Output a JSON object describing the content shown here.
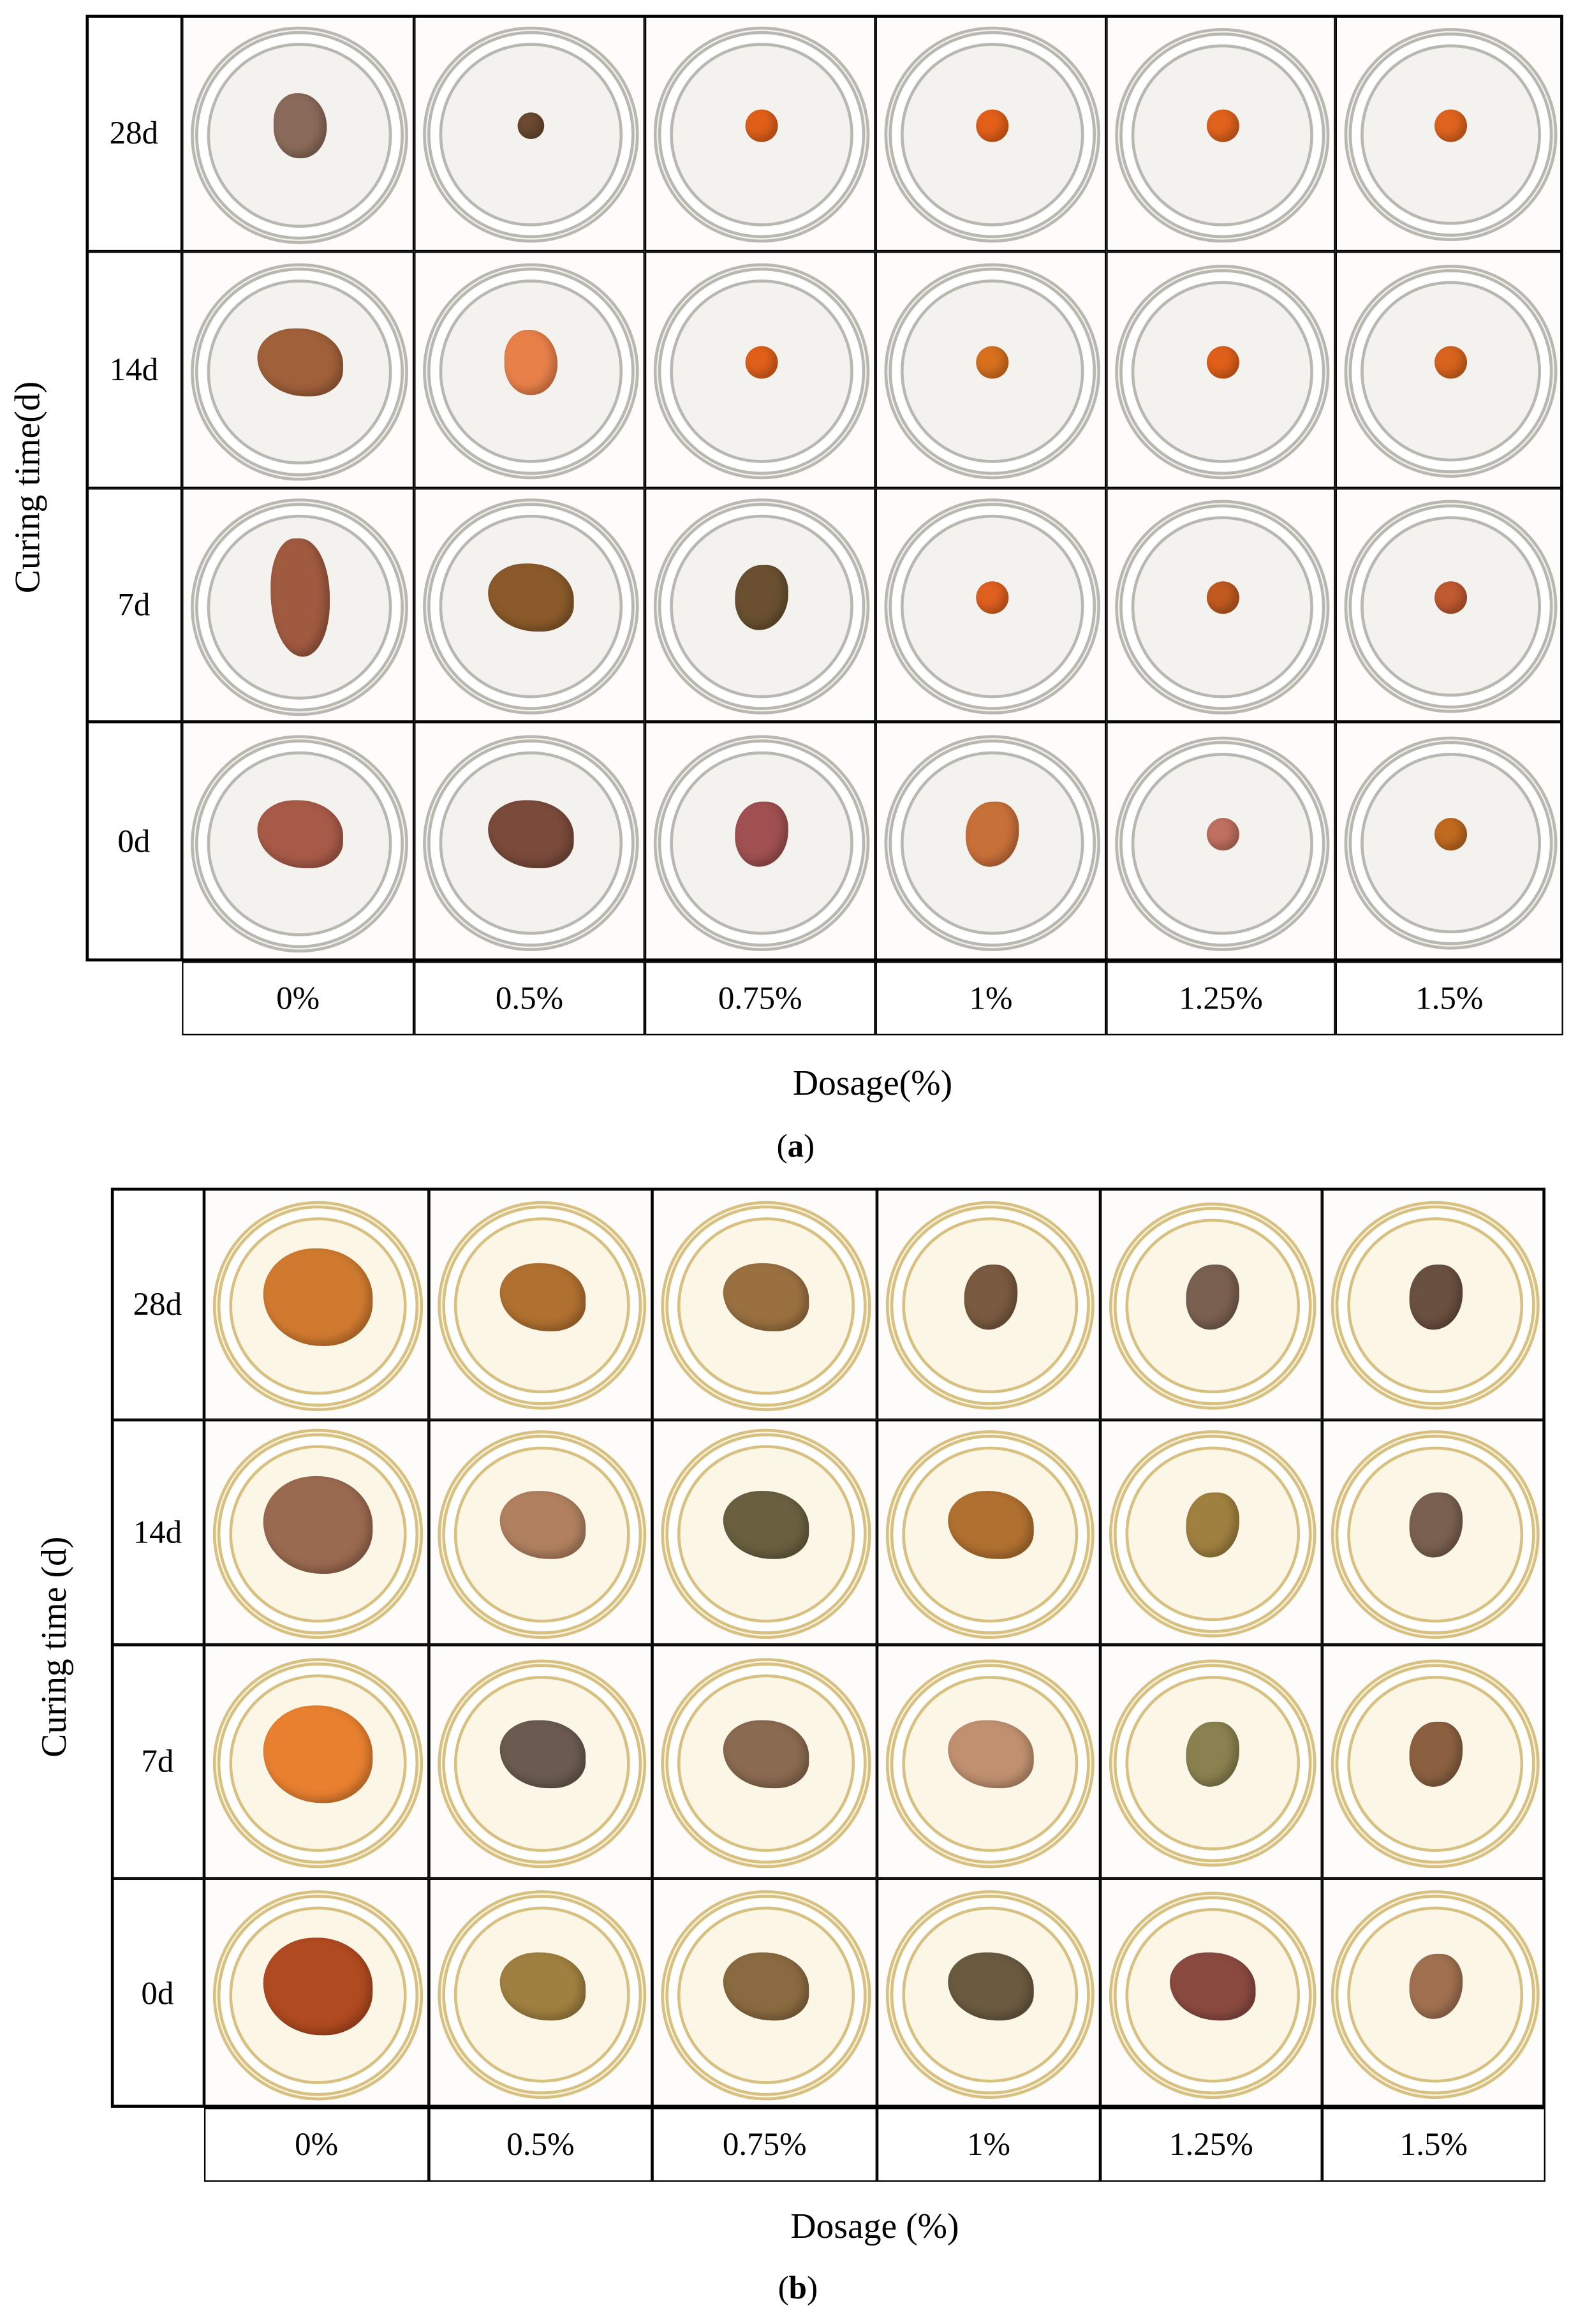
{
  "panels": [
    {
      "id": "a",
      "caption_open": "(",
      "caption_letter": "a",
      "caption_close": ")",
      "ylabel": "Curing time(d)",
      "xlabel": "Dosage(%)",
      "rows": [
        "28d",
        "14d",
        "7d",
        "0d"
      ],
      "columns": [
        "0%",
        "0.5%",
        "0.75%",
        "1%",
        "1.25%",
        "1.5%"
      ],
      "dish_rim": "#b8b8b0",
      "dish_fill": "#f4f2ee",
      "samples": [
        [
          {
            "shape": "powder",
            "color": "#8a6a5a"
          },
          {
            "shape": "ball-small",
            "color": "#6b4a30"
          },
          {
            "shape": "ball",
            "color": "#e0601a"
          },
          {
            "shape": "ball",
            "color": "#e4601a"
          },
          {
            "shape": "ball",
            "color": "#e0621c"
          },
          {
            "shape": "ball",
            "color": "#e0641e"
          }
        ],
        [
          {
            "shape": "blob",
            "color": "#a0603a"
          },
          {
            "shape": "powder",
            "color": "#e8804a"
          },
          {
            "shape": "ball",
            "color": "#e0601a"
          },
          {
            "shape": "ball",
            "color": "#d8701e"
          },
          {
            "shape": "ball",
            "color": "#e0601a"
          },
          {
            "shape": "ball",
            "color": "#d8641e"
          }
        ],
        [
          {
            "shape": "powder-tall",
            "color": "#a05a40"
          },
          {
            "shape": "blob",
            "color": "#8a5a2a"
          },
          {
            "shape": "blob-small",
            "color": "#6a5030"
          },
          {
            "shape": "ball",
            "color": "#e06020"
          },
          {
            "shape": "ball",
            "color": "#c05a20"
          },
          {
            "shape": "ball",
            "color": "#c05a30"
          }
        ],
        [
          {
            "shape": "blob",
            "color": "#a85a48"
          },
          {
            "shape": "blob",
            "color": "#7a4a3a"
          },
          {
            "shape": "blob-small",
            "color": "#a05050"
          },
          {
            "shape": "blob-small",
            "color": "#c8703a"
          },
          {
            "shape": "ball",
            "color": "#c07060"
          },
          {
            "shape": "ball",
            "color": "#c06a20"
          }
        ]
      ]
    },
    {
      "id": "b",
      "caption_open": "(",
      "caption_letter": "b",
      "caption_close": ")",
      "ylabel": "Curing time (d)",
      "xlabel": "Dosage (%)",
      "rows": [
        "28d",
        "14d",
        "7d",
        "0d"
      ],
      "columns": [
        "0%",
        "0.5%",
        "0.75%",
        "1%",
        "1.25%",
        "1.5%"
      ],
      "dish_rim": "#d8c080",
      "dish_fill": "#fbf6e6",
      "samples": [
        [
          {
            "shape": "blob-large",
            "color": "#d07a30"
          },
          {
            "shape": "blob",
            "color": "#b07030"
          },
          {
            "shape": "blob",
            "color": "#9a7040"
          },
          {
            "shape": "blob-small",
            "color": "#7a5a40"
          },
          {
            "shape": "blob-small",
            "color": "#7a6050"
          },
          {
            "shape": "blob-small",
            "color": "#6a5040"
          }
        ],
        [
          {
            "shape": "blob-large",
            "color": "#9a6a50"
          },
          {
            "shape": "blob",
            "color": "#b08060"
          },
          {
            "shape": "blob",
            "color": "#6a6040"
          },
          {
            "shape": "blob",
            "color": "#b07030"
          },
          {
            "shape": "blob-small",
            "color": "#a08040"
          },
          {
            "shape": "blob-small",
            "color": "#7a6050"
          }
        ],
        [
          {
            "shape": "blob-large",
            "color": "#e88030"
          },
          {
            "shape": "blob",
            "color": "#6a5a50"
          },
          {
            "shape": "blob",
            "color": "#8a6a50"
          },
          {
            "shape": "blob",
            "color": "#c09070"
          },
          {
            "shape": "blob-small",
            "color": "#8a8050"
          },
          {
            "shape": "blob-small",
            "color": "#8a6040"
          }
        ],
        [
          {
            "shape": "blob-large",
            "color": "#b04a20"
          },
          {
            "shape": "blob",
            "color": "#a08040"
          },
          {
            "shape": "blob",
            "color": "#8a6a40"
          },
          {
            "shape": "blob",
            "color": "#6a5a40"
          },
          {
            "shape": "blob",
            "color": "#8a4a40"
          },
          {
            "shape": "blob-small",
            "color": "#a07050"
          }
        ]
      ]
    }
  ]
}
